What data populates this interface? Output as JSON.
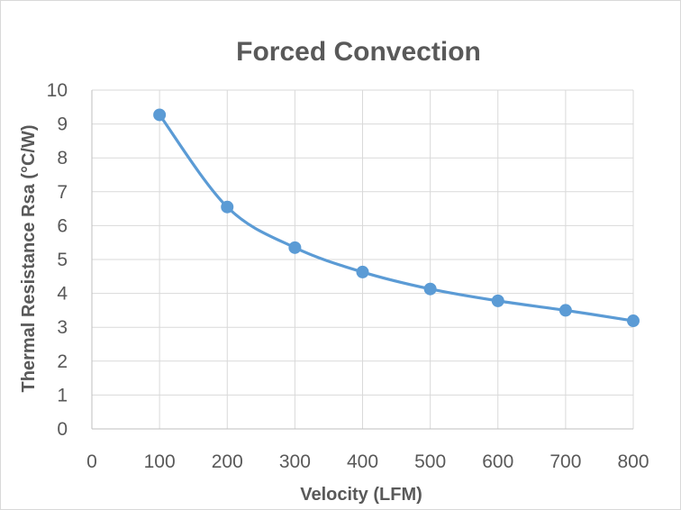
{
  "chart_data": {
    "type": "scatter",
    "title": "Forced Convection",
    "xlabel": "Velocity (LFM)",
    "ylabel": "Thermal Resistance Rsa (°C/W)",
    "xlim": [
      0,
      800
    ],
    "ylim": [
      0,
      10
    ],
    "xticks": [
      0,
      100,
      200,
      300,
      400,
      500,
      600,
      700,
      800
    ],
    "yticks": [
      0,
      1,
      2,
      3,
      4,
      5,
      6,
      7,
      8,
      9,
      10
    ],
    "grid": true,
    "smooth_line": true,
    "series": [
      {
        "x": [
          100,
          200,
          300,
          400,
          500,
          600,
          700,
          800
        ],
        "y": [
          9.27,
          6.55,
          5.35,
          4.63,
          4.13,
          3.78,
          3.5,
          3.19
        ],
        "color": "#5b9bd5"
      }
    ]
  }
}
